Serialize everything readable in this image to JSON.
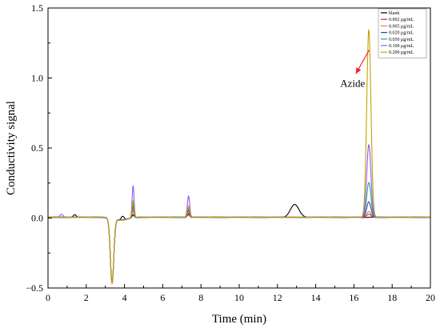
{
  "chart_data": {
    "type": "line",
    "title": "",
    "xlabel": "Time (min)",
    "ylabel": "Conductivity signal",
    "xlim": [
      0,
      20
    ],
    "ylim": [
      -0.5,
      1.5
    ],
    "x_ticks": [
      0,
      2,
      4,
      6,
      8,
      10,
      12,
      14,
      16,
      18,
      20
    ],
    "y_ticks": [
      -0.5,
      0.0,
      0.5,
      1.0,
      1.5
    ],
    "y_tick_labels": [
      "−0.5",
      "0.0",
      "0.5",
      "1.0",
      "1.5"
    ],
    "grid": false,
    "legend_position": "top-right",
    "annotation": {
      "text": "Azide",
      "arrow_from": [
        16.1,
        1.03
      ],
      "arrow_to": [
        16.8,
        1.2
      ]
    },
    "series": [
      {
        "name": "blank",
        "color": "#000000",
        "azide_peak": 0.0,
        "peaks": [
          [
            3.35,
            -0.46,
            0.09
          ],
          [
            3.9,
            0.028,
            0.08
          ],
          [
            4.45,
            0.02,
            0.05
          ],
          [
            7.35,
            0.02,
            0.06
          ],
          [
            12.9,
            0.09,
            0.22
          ],
          [
            1.4,
            0.02,
            0.08
          ]
        ]
      },
      {
        "name": "0.002 μg/mL",
        "color": "#d62728",
        "azide_peak": 0.02,
        "peaks": [
          [
            3.35,
            -0.46,
            0.09
          ],
          [
            4.45,
            0.05,
            0.05
          ],
          [
            7.35,
            0.03,
            0.06
          ]
        ]
      },
      {
        "name": "0.005 μg/mL",
        "color": "#ff6b6b",
        "azide_peak": 0.04,
        "peaks": [
          [
            3.35,
            -0.46,
            0.09
          ],
          [
            4.45,
            0.06,
            0.05
          ],
          [
            7.35,
            0.04,
            0.06
          ]
        ]
      },
      {
        "name": "0.020 μg/mL",
        "color": "#1f4e9e",
        "azide_peak": 0.11,
        "peaks": [
          [
            3.35,
            -0.46,
            0.09
          ],
          [
            4.45,
            0.08,
            0.05
          ],
          [
            7.35,
            0.05,
            0.06
          ]
        ]
      },
      {
        "name": "0.050 μg/mL",
        "color": "#2a9d8f",
        "azide_peak": 0.25,
        "peaks": [
          [
            3.35,
            -0.46,
            0.09
          ],
          [
            4.45,
            0.1,
            0.05
          ],
          [
            7.35,
            0.06,
            0.06
          ]
        ]
      },
      {
        "name": "0.100 μg/mL",
        "color": "#8a5cf6",
        "azide_peak": 0.52,
        "peaks": [
          [
            3.35,
            -0.46,
            0.09
          ],
          [
            4.45,
            0.23,
            0.05
          ],
          [
            7.35,
            0.15,
            0.06
          ],
          [
            0.7,
            0.02,
            0.08
          ]
        ]
      },
      {
        "name": "0.200 μg/mL",
        "color": "#c9a000",
        "azide_peak": 1.34,
        "peaks": [
          [
            3.35,
            -0.46,
            0.09
          ],
          [
            4.45,
            0.12,
            0.05
          ],
          [
            7.35,
            0.08,
            0.06
          ]
        ]
      }
    ],
    "azide_peak_time": 16.78
  }
}
